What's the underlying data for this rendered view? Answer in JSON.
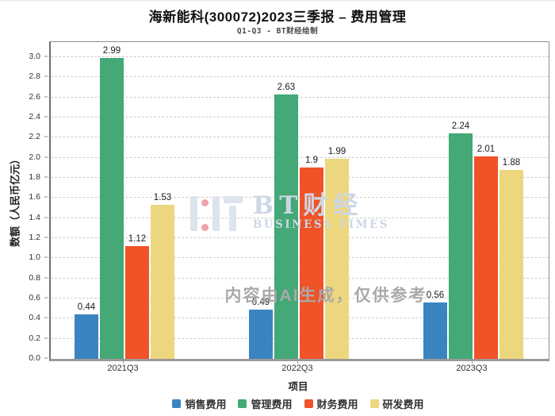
{
  "chart_data": {
    "type": "bar",
    "title": "海新能科(300072)2023三季报 – 费用管理",
    "subtitle": "Q1-Q3 - BT财经绘制",
    "xlabel": "项目",
    "ylabel": "数额（人民币亿元）",
    "categories": [
      "2021Q3",
      "2022Q3",
      "2023Q3"
    ],
    "series": [
      {
        "id": "sales-expense",
        "name": "销售费用",
        "color": "#3B84C2",
        "values": [
          0.44,
          0.49,
          0.56
        ],
        "labels": [
          "0.44",
          "0.49",
          "0.56"
        ]
      },
      {
        "id": "admin-expense",
        "name": "管理费用",
        "color": "#44A877",
        "values": [
          2.99,
          2.63,
          2.24
        ],
        "labels": [
          "2.99",
          "2.63",
          "2.24"
        ]
      },
      {
        "id": "finance-expense",
        "name": "财务费用",
        "color": "#EF5327",
        "values": [
          1.12,
          1.9,
          2.01
        ],
        "labels": [
          "1.12",
          "1.9",
          "2.01"
        ]
      },
      {
        "id": "rnd-expense",
        "name": "研发费用",
        "color": "#EDD77E",
        "values": [
          1.53,
          1.99,
          1.88
        ],
        "labels": [
          "1.53",
          "1.99",
          "1.88"
        ]
      }
    ],
    "ylim": [
      0,
      3.15
    ],
    "yticks": [
      0.0,
      0.2,
      0.4,
      0.6,
      0.8,
      1.0,
      1.2,
      1.4,
      1.6,
      1.8,
      2.0,
      2.2,
      2.4,
      2.6,
      2.8,
      3.0
    ],
    "grid": "horizontal-dashed",
    "legend_position": "bottom"
  },
  "watermark": {
    "logo_text": "BT财经",
    "logo_subtext": "BUSINESS TIMES",
    "ai_text": "内容由AI生成，仅供参考"
  }
}
